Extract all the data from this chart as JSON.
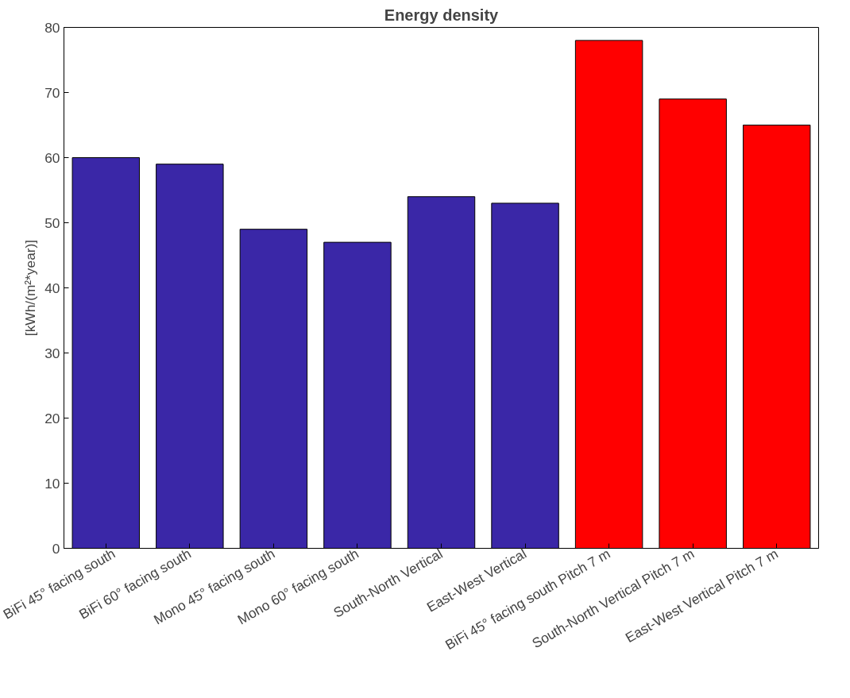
{
  "chart_data": {
    "type": "bar",
    "title": "Energy density",
    "ylabel": "[kWh/(m²*year)]",
    "categories": [
      "BiFi 45° facing south",
      "BiFi 60° facing south",
      "Mono 45° facing south",
      "Mono 60° facing south",
      "South-North Vertical",
      "East-West Vertical",
      "BiFi 45° facing south Pitch 7 m",
      "South-North Vertical Pitch 7 m",
      "East-West Vertical Pitch 7 m"
    ],
    "values": [
      60,
      59,
      49,
      47,
      54,
      53,
      78,
      69,
      65
    ],
    "colors": [
      "#3a27a7",
      "#3a27a7",
      "#3a27a7",
      "#3a27a7",
      "#3a27a7",
      "#3a27a7",
      "#ff0000",
      "#ff0000",
      "#ff0000"
    ],
    "ylim": [
      0,
      80
    ],
    "yticks": [
      0,
      10,
      20,
      30,
      40,
      50,
      60,
      70,
      80
    ],
    "grid": false
  }
}
